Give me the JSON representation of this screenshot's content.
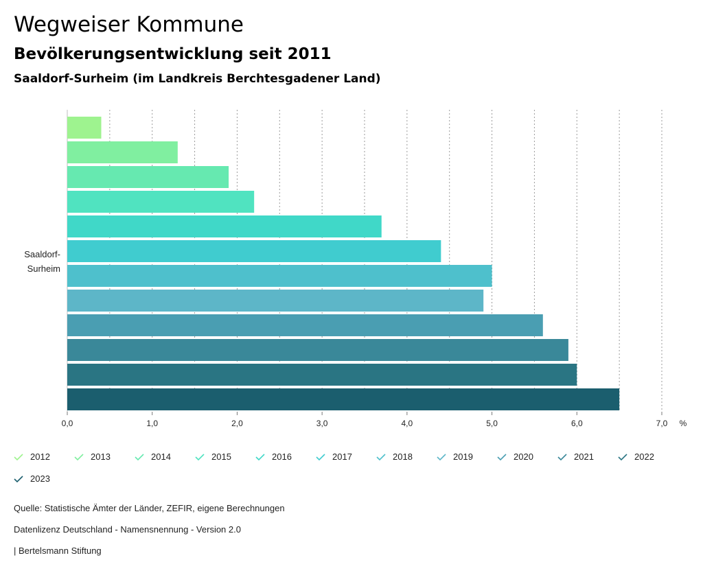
{
  "header": {
    "title": "Wegweiser Kommune",
    "subtitle": "Bevölkerungsentwicklung seit 2011",
    "region": "Saaldorf-Surheim (im Landkreis Berchtesgadener Land)"
  },
  "chart_data": {
    "type": "bar",
    "orientation": "horizontal",
    "category": [
      "Saaldorf-",
      "Surheim"
    ],
    "unit": "%",
    "xlim": [
      0,
      7
    ],
    "xticks": [
      "0,0",
      "1,0",
      "2,0",
      "3,0",
      "4,0",
      "5,0",
      "6,0",
      "7,0"
    ],
    "grid": true,
    "series": [
      {
        "name": "2012",
        "value": 0.4,
        "color": "#9ef38f"
      },
      {
        "name": "2013",
        "value": 1.3,
        "color": "#80efa0"
      },
      {
        "name": "2014",
        "value": 1.9,
        "color": "#66e9b0"
      },
      {
        "name": "2015",
        "value": 2.2,
        "color": "#50e3c0"
      },
      {
        "name": "2016",
        "value": 3.7,
        "color": "#40d8c8"
      },
      {
        "name": "2017",
        "value": 4.4,
        "color": "#40cccf"
      },
      {
        "name": "2018",
        "value": 5.0,
        "color": "#4ec0cc"
      },
      {
        "name": "2019",
        "value": 4.9,
        "color": "#5db6c8"
      },
      {
        "name": "2020",
        "value": 5.6,
        "color": "#4a9eb2"
      },
      {
        "name": "2021",
        "value": 5.9,
        "color": "#3a8899"
      },
      {
        "name": "2022",
        "value": 6.0,
        "color": "#2a7583"
      },
      {
        "name": "2023",
        "value": 6.5,
        "color": "#1b5e6e"
      }
    ]
  },
  "footer": {
    "source": "Quelle: Statistische Ämter der Länder, ZEFIR, eigene Berechnungen",
    "license": "Datenlizenz Deutschland - Namensnennung - Version 2.0",
    "credit": "| Bertelsmann Stiftung"
  }
}
